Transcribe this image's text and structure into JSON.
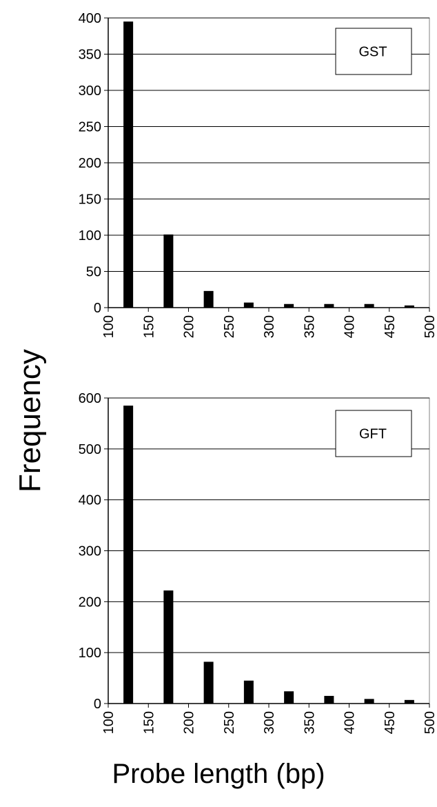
{
  "figure": {
    "ylabel": "Frequency",
    "xlabel": "Probe length (bp)"
  },
  "chart_data": [
    {
      "type": "bar",
      "legend": "GST",
      "x": [
        125,
        175,
        225,
        275,
        325,
        375,
        425,
        475
      ],
      "values": [
        395,
        101,
        23,
        7,
        5,
        5,
        5,
        3
      ],
      "xlim": [
        100,
        500
      ],
      "xticks": [
        100,
        150,
        200,
        250,
        300,
        350,
        400,
        450,
        500
      ],
      "ylim": [
        0,
        400
      ],
      "yticks": [
        0,
        50,
        100,
        150,
        200,
        250,
        300,
        350,
        400
      ],
      "grid": "horizontal",
      "legend_position": "top-right",
      "bar_color": "#000000"
    },
    {
      "type": "bar",
      "legend": "GFT",
      "x": [
        125,
        175,
        225,
        275,
        325,
        375,
        425,
        475
      ],
      "values": [
        585,
        222,
        82,
        45,
        24,
        15,
        9,
        7
      ],
      "xlim": [
        100,
        500
      ],
      "xticks": [
        100,
        150,
        200,
        250,
        300,
        350,
        400,
        450,
        500
      ],
      "ylim": [
        0,
        600
      ],
      "yticks": [
        0,
        100,
        200,
        300,
        400,
        500,
        600
      ],
      "grid": "horizontal",
      "legend_position": "top-right",
      "bar_color": "#000000"
    }
  ]
}
